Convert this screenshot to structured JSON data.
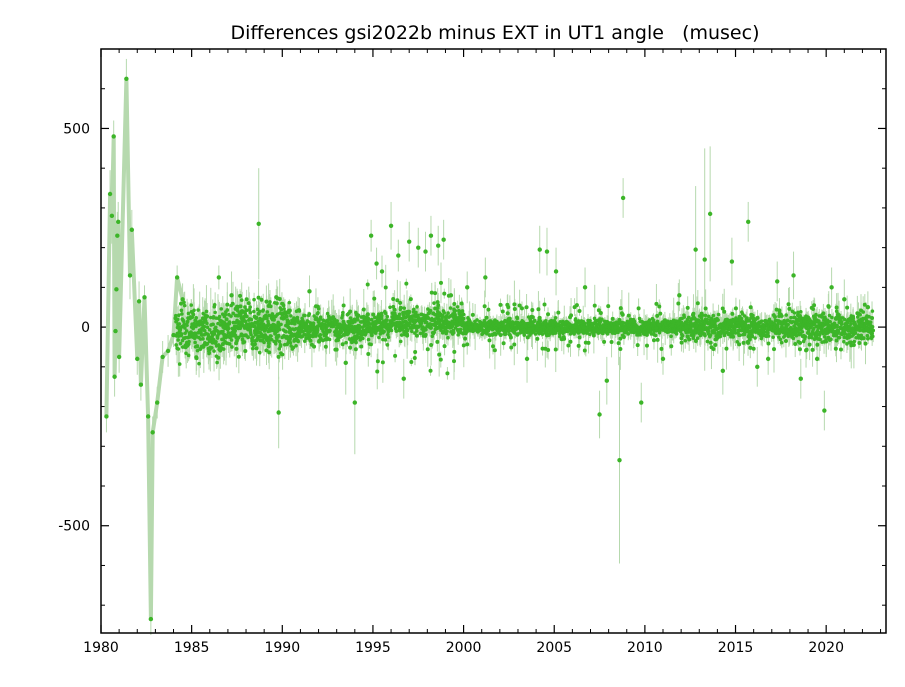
{
  "chart_data": {
    "type": "scatter",
    "title": "Differences gsi2022b minus EXT in UT1 angle   (musec)",
    "xlabel": "",
    "ylabel": "",
    "xlim": [
      1980,
      2023.3
    ],
    "ylim": [
      -770,
      700
    ],
    "x_ticks": [
      1980,
      1985,
      1990,
      1995,
      2000,
      2005,
      2010,
      2015,
      2020
    ],
    "y_ticks": [
      500,
      0,
      -500
    ],
    "x_tick_labels": [
      "1980",
      "1985",
      "1990",
      "1995",
      "2000",
      "2005",
      "2010",
      "2015",
      "2020"
    ],
    "y_tick_labels": [
      "500",
      "0",
      "-500"
    ],
    "grid": false,
    "colors": {
      "point": "#3cb528",
      "errorbar": "#b6d9ae",
      "frame": "#000000"
    },
    "series": [
      {
        "points": [
          {
            "x": 1980.3,
            "y": -225,
            "err": 40
          },
          {
            "x": 1980.5,
            "y": 335,
            "err": 60
          },
          {
            "x": 1980.6,
            "y": 280,
            "err": 70
          },
          {
            "x": 1980.7,
            "y": 480,
            "err": 40
          },
          {
            "x": 1980.75,
            "y": -125,
            "err": 50
          },
          {
            "x": 1980.8,
            "y": -10,
            "err": 60
          },
          {
            "x": 1980.85,
            "y": 95,
            "err": 50
          },
          {
            "x": 1980.9,
            "y": 230,
            "err": 60
          },
          {
            "x": 1980.95,
            "y": 265,
            "err": 50
          },
          {
            "x": 1981.0,
            "y": -75,
            "err": 40
          },
          {
            "x": 1981.4,
            "y": 625,
            "err": 50
          },
          {
            "x": 1981.6,
            "y": 130,
            "err": 60
          },
          {
            "x": 1981.7,
            "y": 245,
            "err": 50
          },
          {
            "x": 1982.0,
            "y": -80,
            "err": 40
          },
          {
            "x": 1982.1,
            "y": 65,
            "err": 50
          },
          {
            "x": 1982.2,
            "y": -145,
            "err": 40
          },
          {
            "x": 1982.4,
            "y": 75,
            "err": 30
          },
          {
            "x": 1982.6,
            "y": -225,
            "err": 40
          },
          {
            "x": 1982.75,
            "y": -735,
            "err": 40
          },
          {
            "x": 1982.85,
            "y": -265,
            "err": 40
          },
          {
            "x": 1983.1,
            "y": -190,
            "err": 40
          },
          {
            "x": 1983.4,
            "y": -75,
            "err": 40
          },
          {
            "x": 1983.7,
            "y": -60,
            "err": 40
          },
          {
            "x": 1984.0,
            "y": -20,
            "err": 30
          },
          {
            "x": 1984.2,
            "y": 125,
            "err": 30
          },
          {
            "x": 1984.5,
            "y": 70,
            "err": 40
          },
          {
            "x": 1986.5,
            "y": 125,
            "err": 30
          },
          {
            "x": 1987.2,
            "y": 80,
            "err": 60
          },
          {
            "x": 1988.7,
            "y": 260,
            "err": 140
          },
          {
            "x": 1989.8,
            "y": -215,
            "err": 90
          },
          {
            "x": 1991.5,
            "y": 90,
            "err": 40
          },
          {
            "x": 1993.5,
            "y": -90,
            "err": 80
          },
          {
            "x": 1994.0,
            "y": -190,
            "err": 130
          },
          {
            "x": 1994.9,
            "y": 230,
            "err": 40
          },
          {
            "x": 1995.2,
            "y": 160,
            "err": 40
          },
          {
            "x": 1995.5,
            "y": 140,
            "err": 40
          },
          {
            "x": 1996.0,
            "y": 255,
            "err": 60
          },
          {
            "x": 1996.4,
            "y": 180,
            "err": 40
          },
          {
            "x": 1996.7,
            "y": -130,
            "err": 50
          },
          {
            "x": 1997.0,
            "y": 215,
            "err": 50
          },
          {
            "x": 1997.5,
            "y": 200,
            "err": 50
          },
          {
            "x": 1997.9,
            "y": 190,
            "err": 50
          },
          {
            "x": 1998.2,
            "y": 230,
            "err": 50
          },
          {
            "x": 1998.6,
            "y": 205,
            "err": 50
          },
          {
            "x": 1998.9,
            "y": 220,
            "err": 50
          },
          {
            "x": 1999.3,
            "y": 80,
            "err": 40
          },
          {
            "x": 2000.2,
            "y": 100,
            "err": 40
          },
          {
            "x": 2001.2,
            "y": 125,
            "err": 50
          },
          {
            "x": 2003.5,
            "y": -80,
            "err": 60
          },
          {
            "x": 2004.2,
            "y": 195,
            "err": 60
          },
          {
            "x": 2004.6,
            "y": 190,
            "err": 60
          },
          {
            "x": 2005.1,
            "y": 140,
            "err": 60
          },
          {
            "x": 2006.7,
            "y": 100,
            "err": 50
          },
          {
            "x": 2007.5,
            "y": -220,
            "err": 60
          },
          {
            "x": 2007.9,
            "y": -135,
            "err": 60
          },
          {
            "x": 2008.6,
            "y": -335,
            "err": 260
          },
          {
            "x": 2008.8,
            "y": 325,
            "err": 50
          },
          {
            "x": 2009.8,
            "y": -190,
            "err": 50
          },
          {
            "x": 2011.0,
            "y": -80,
            "err": 40
          },
          {
            "x": 2011.9,
            "y": 80,
            "err": 40
          },
          {
            "x": 2012.8,
            "y": 195,
            "err": 160
          },
          {
            "x": 2013.3,
            "y": 170,
            "err": 280
          },
          {
            "x": 2013.6,
            "y": 285,
            "err": 170
          },
          {
            "x": 2014.3,
            "y": -110,
            "err": 60
          },
          {
            "x": 2014.8,
            "y": 165,
            "err": 60
          },
          {
            "x": 2015.7,
            "y": 265,
            "err": 50
          },
          {
            "x": 2016.2,
            "y": -100,
            "err": 50
          },
          {
            "x": 2016.8,
            "y": -80,
            "err": 40
          },
          {
            "x": 2017.3,
            "y": 115,
            "err": 50
          },
          {
            "x": 2018.2,
            "y": 130,
            "err": 60
          },
          {
            "x": 2018.6,
            "y": -130,
            "err": 50
          },
          {
            "x": 2019.5,
            "y": -80,
            "err": 40
          },
          {
            "x": 2019.9,
            "y": -210,
            "err": 50
          },
          {
            "x": 2020.3,
            "y": 100,
            "err": 50
          },
          {
            "x": 2021.0,
            "y": 70,
            "err": 50
          },
          {
            "x": 2022.3,
            "y": 50,
            "err": 40
          }
        ]
      }
    ]
  }
}
